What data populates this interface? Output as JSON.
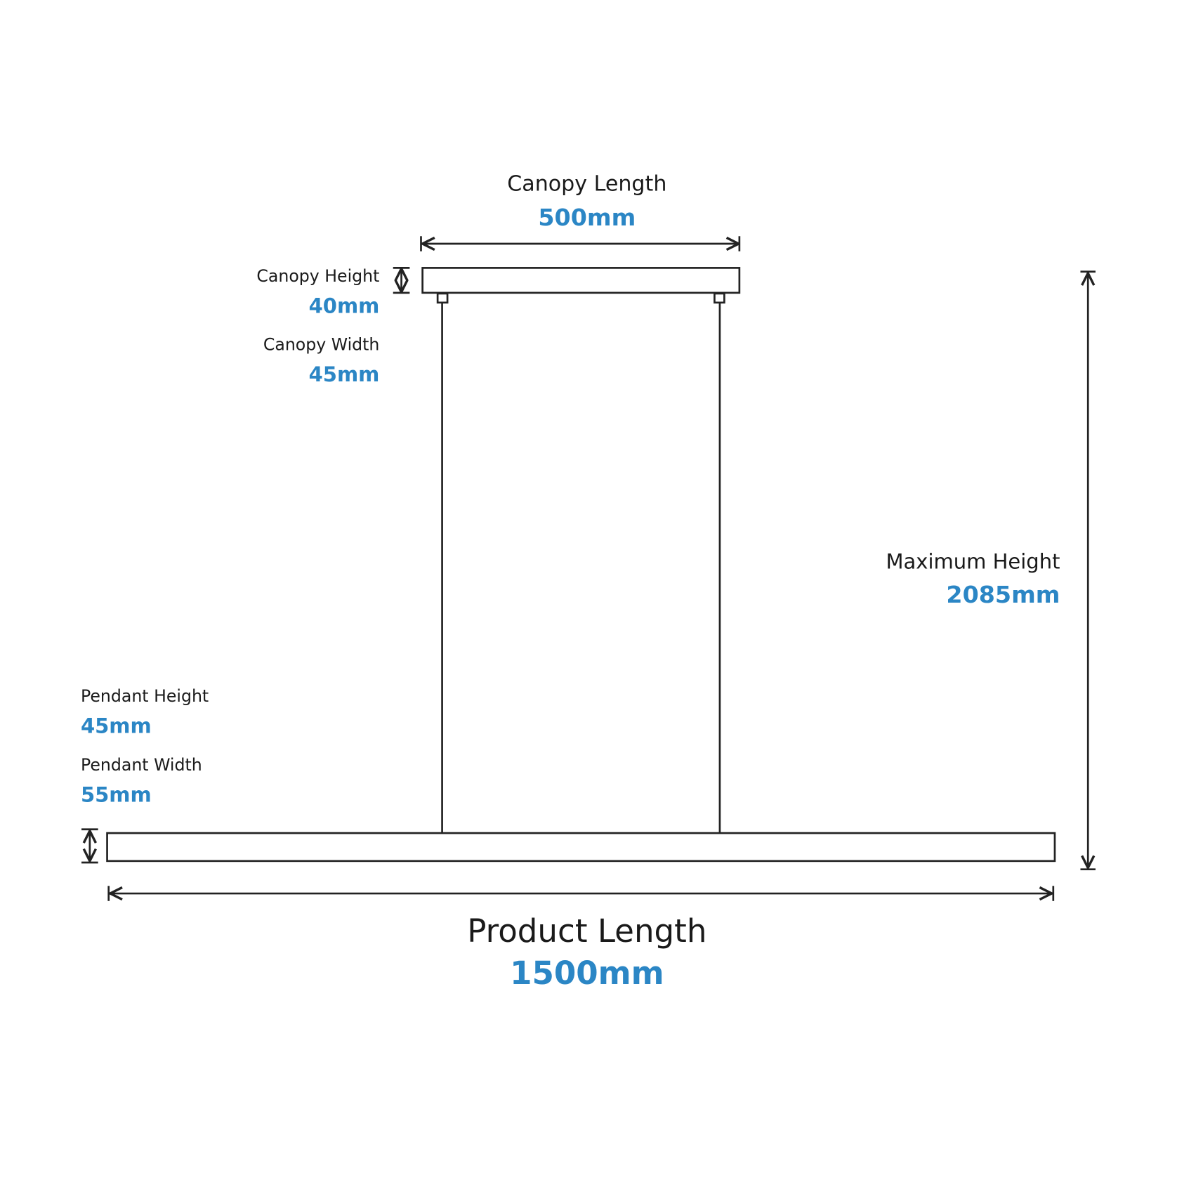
{
  "dimensions": [
    {
      "label": "Canopy Length",
      "value": "500mm"
    },
    {
      "label": "Canopy Height",
      "value": "40mm"
    },
    {
      "label": "Canopy Width",
      "value": "45mm"
    },
    {
      "label": "Maximum Height",
      "value": "2085mm"
    },
    {
      "label": "Pendant Height",
      "value": "45mm"
    },
    {
      "label": "Pendant Width",
      "value": "55mm"
    },
    {
      "label": "Product Length",
      "value": "1500mm"
    }
  ]
}
